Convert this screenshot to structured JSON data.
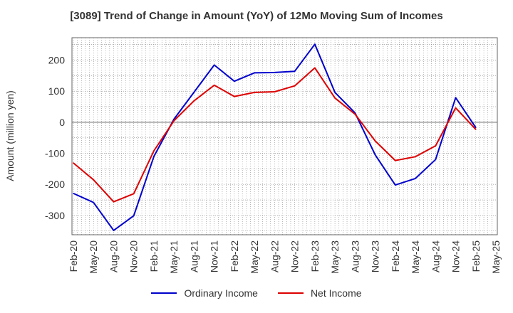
{
  "chart_data": {
    "type": "line",
    "title": "[3089]  Trend of Change in Amount (YoY) of 12Mo Moving Sum of Incomes",
    "ylabel": "Amount (million yen)",
    "xlabel": "",
    "categories": [
      "Feb-20",
      "May-20",
      "Aug-20",
      "Nov-20",
      "Feb-21",
      "May-21",
      "Aug-21",
      "Nov-21",
      "Feb-22",
      "May-22",
      "Aug-22",
      "Nov-22",
      "Feb-23",
      "May-23",
      "Aug-23",
      "Nov-23",
      "Feb-24",
      "May-24",
      "Aug-24",
      "Nov-24",
      "Feb-25",
      "May-25"
    ],
    "yticks": [
      -300,
      -200,
      -100,
      0,
      100,
      200
    ],
    "ylim": [
      -362,
      272
    ],
    "grid": true,
    "legend_position": "bottom",
    "series": [
      {
        "name": "Ordinary Income",
        "color": "#0000cc",
        "values": [
          -229,
          -258,
          -348,
          -301,
          -110,
          10,
          97,
          184,
          132,
          159,
          160,
          164,
          251,
          96,
          30,
          -105,
          -202,
          -181,
          -120,
          79,
          -17,
          null
        ]
      },
      {
        "name": "Net Income",
        "color": "#dd0000",
        "values": [
          -131,
          -185,
          -256,
          -230,
          -92,
          5,
          69,
          119,
          83,
          96,
          98,
          117,
          175,
          78,
          26,
          -60,
          -123,
          -111,
          -76,
          46,
          -23,
          null
        ]
      }
    ]
  }
}
